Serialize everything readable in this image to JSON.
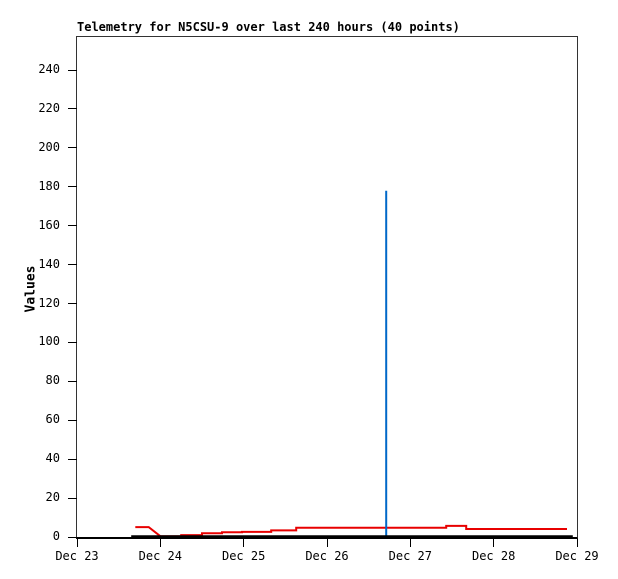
{
  "header": {
    "title": "Telemetry for N5CSU-9 over last 240 hours (40 points)"
  },
  "chart_data": {
    "type": "line",
    "title": "Telemetry for N5CSU-9 over last 240 hours (40 points)",
    "xlabel": "",
    "ylabel": "Values",
    "x_tick_labels": [
      "Dec 23",
      "Dec 24",
      "Dec 25",
      "Dec 26",
      "Dec 27",
      "Dec 28",
      "Dec 29"
    ],
    "y_ticks": [
      0,
      20,
      40,
      60,
      80,
      100,
      120,
      140,
      160,
      180,
      200,
      220,
      240
    ],
    "x_range_days": [
      0,
      6
    ],
    "y_range": [
      0,
      257
    ],
    "grid": false,
    "legend_position": "none",
    "axis_color": "#000000",
    "border_color": "#333333",
    "series": [
      {
        "name": "telemetry-red",
        "color": "#e80000",
        "stroke_width": 2,
        "points": [
          [
            0.7,
            5.1
          ],
          [
            0.86,
            5.1
          ],
          [
            1.0,
            0.4
          ],
          [
            1.25,
            0.4
          ],
          [
            1.25,
            1.0
          ],
          [
            1.5,
            1.0
          ],
          [
            1.5,
            1.9
          ],
          [
            1.74,
            1.9
          ],
          [
            1.74,
            2.4
          ],
          [
            1.98,
            2.4
          ],
          [
            1.98,
            2.6
          ],
          [
            2.33,
            2.6
          ],
          [
            2.33,
            3.4
          ],
          [
            2.63,
            3.4
          ],
          [
            2.63,
            4.8
          ],
          [
            4.43,
            4.8
          ],
          [
            4.43,
            5.7
          ],
          [
            4.67,
            5.7
          ],
          [
            4.67,
            4.1
          ],
          [
            5.88,
            4.1
          ]
        ]
      },
      {
        "name": "spike-blue",
        "color": "#0068c8",
        "stroke_width": 2,
        "points": [
          [
            3.71,
            0
          ],
          [
            3.71,
            178
          ]
        ]
      },
      {
        "name": "baseline-black",
        "color": "#000000",
        "stroke_width": 2,
        "points": [
          [
            0.65,
            0.4
          ],
          [
            5.95,
            0.4
          ]
        ]
      }
    ]
  }
}
